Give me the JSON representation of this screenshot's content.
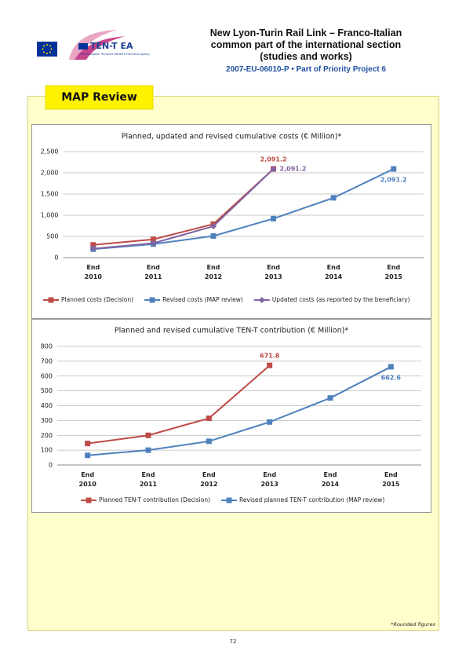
{
  "header": {
    "logo_text": "TEN-T EA",
    "logo_subtext": "Trans-European Transport Network Executive Agency",
    "title_lines": [
      "New Lyon-Turin Rail Link – Franco-Italian",
      "common part of the international section",
      "(studies and works)"
    ],
    "subtitle": "2007-EU-06010-P • Part of Priority Project 6"
  },
  "section_title": "MAP Review",
  "chart_data": [
    {
      "type": "line",
      "title": "Planned, updated and revised cumulative costs (€ Million)*",
      "categories": [
        "End 2010",
        "End 2011",
        "End 2012",
        "End 2013",
        "End 2014",
        "End 2015"
      ],
      "series": [
        {
          "name": "Planned costs (Decision)",
          "color": "#be4b48",
          "marker": "square",
          "values": [
            300,
            430,
            790,
            2091.2,
            null,
            null
          ],
          "value_labels": [
            null,
            null,
            null,
            "2,091.2",
            null,
            null
          ]
        },
        {
          "name": "Revised costs (MAP review)",
          "color": "#4f81bd",
          "marker": "square",
          "values": [
            200,
            320,
            510,
            920,
            1410,
            2091.2
          ],
          "value_labels": [
            null,
            null,
            null,
            null,
            null,
            "2,091.2"
          ]
        },
        {
          "name": "Updated costs (as reported by the beneficiary)",
          "color": "#8064a2",
          "marker": "diamond",
          "values": [
            210,
            340,
            740,
            2091.2,
            null,
            null
          ],
          "value_labels": [
            null,
            null,
            null,
            "2,091.2",
            null,
            null
          ]
        }
      ],
      "ylim": [
        0,
        2500
      ],
      "yticks": [
        0,
        500,
        {
          "value": 1000,
          "label": "1,000"
        },
        {
          "value": 1500,
          "label": "1,500"
        },
        {
          "value": 2000,
          "label": "2,000"
        },
        {
          "value": 2500,
          "label": "2,500"
        }
      ],
      "grid": true
    },
    {
      "type": "line",
      "title": "Planned and revised cumulative TEN-T contribution (€ Million)*",
      "categories": [
        "End 2010",
        "End 2011",
        "End 2012",
        "End 2013",
        "End 2014",
        "End 2015"
      ],
      "series": [
        {
          "name": "Planned TEN-T contribution (Decision)",
          "color": "#be4b48",
          "marker": "square",
          "values": [
            145,
            200,
            315,
            671.8,
            null,
            null
          ],
          "value_labels": [
            null,
            null,
            null,
            "671.8",
            null,
            null
          ]
        },
        {
          "name": "Revised planned TEN-T contribution (MAP review)",
          "color": "#4f81bd",
          "marker": "square",
          "values": [
            65,
            100,
            160,
            290,
            452,
            662.6
          ],
          "value_labels": [
            null,
            null,
            null,
            null,
            null,
            "662.6"
          ]
        }
      ],
      "ylim": [
        0,
        800
      ],
      "yticks": [
        0,
        100,
        200,
        300,
        400,
        500,
        600,
        700,
        800
      ],
      "grid": true
    }
  ],
  "footnote": "*Rounded figures",
  "page_number": "72"
}
